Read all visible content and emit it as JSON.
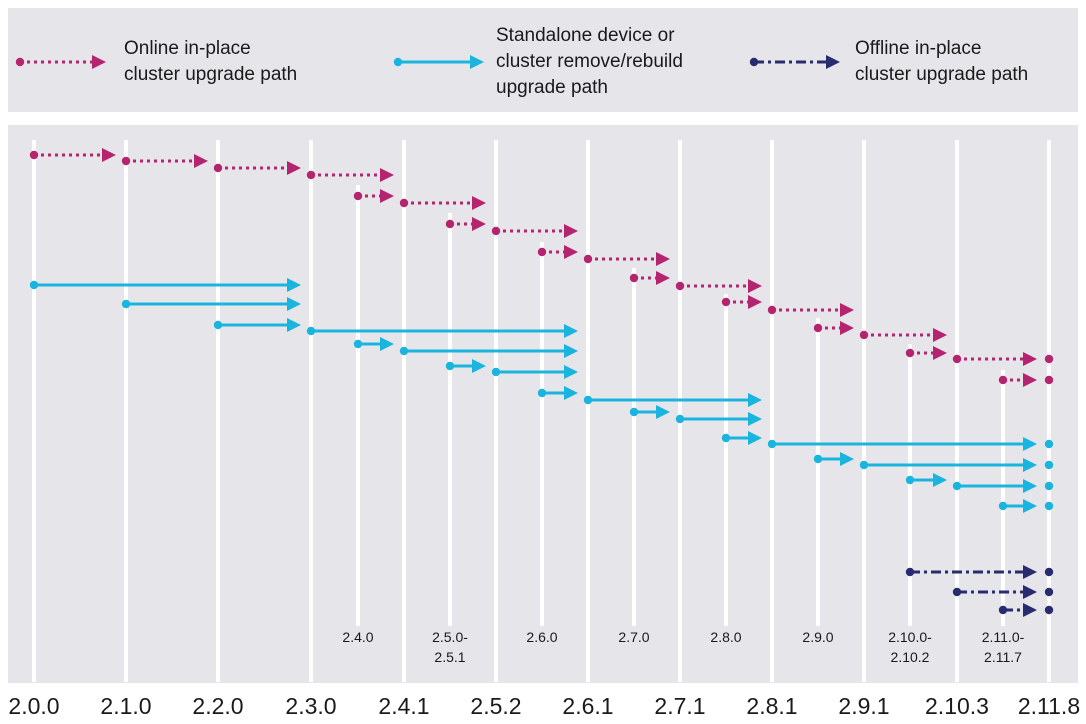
{
  "colors": {
    "background_panel": "#e6e5ea",
    "grid_line": "#ffffff",
    "online": "#b5246f",
    "standalone": "#19b5de",
    "offline": "#282c6e"
  },
  "legend": {
    "online": {
      "lines": [
        "Online in-place",
        "cluster upgrade path"
      ],
      "style": "dotted",
      "icon": "dotted-arrow-icon"
    },
    "standalone": {
      "lines": [
        "Standalone device or",
        "cluster remove/rebuild",
        "upgrade path"
      ],
      "style": "solid",
      "icon": "solid-arrow-icon"
    },
    "offline": {
      "lines": [
        "Offline in-place",
        "cluster upgrade path"
      ],
      "style": "dashdot",
      "icon": "dashdot-arrow-icon"
    }
  },
  "major_versions": [
    "2.0.0",
    "2.1.0",
    "2.2.0",
    "2.3.0",
    "2.4.1",
    "2.5.2",
    "2.6.1",
    "2.7.1",
    "2.8.1",
    "2.9.1",
    "2.10.3",
    "2.11.8"
  ],
  "minor_versions": [
    {
      "lines": [
        "2.4.0"
      ],
      "after": "2.3.0"
    },
    {
      "lines": [
        "2.5.0-",
        "2.5.1"
      ],
      "after": "2.4.1"
    },
    {
      "lines": [
        "2.6.0"
      ],
      "after": "2.5.2"
    },
    {
      "lines": [
        "2.7.0"
      ],
      "after": "2.6.1"
    },
    {
      "lines": [
        "2.8.0"
      ],
      "after": "2.7.1"
    },
    {
      "lines": [
        "2.9.0"
      ],
      "after": "2.8.1"
    },
    {
      "lines": [
        "2.10.0-",
        "2.10.2"
      ],
      "after": "2.9.1"
    },
    {
      "lines": [
        "2.11.0-",
        "2.11.7"
      ],
      "after": "2.10.3"
    }
  ],
  "paths": {
    "online": [
      {
        "from": "2.0.0",
        "to": "2.1.0"
      },
      {
        "from": "2.1.0",
        "to": "2.2.0"
      },
      {
        "from": "2.2.0",
        "to": "2.3.0"
      },
      {
        "from": "2.3.0",
        "to": "2.4.1"
      },
      {
        "from": "2.4.0",
        "to": "2.4.1"
      },
      {
        "from": "2.4.1",
        "to": "2.5.2"
      },
      {
        "from": "2.5.0-2.5.1",
        "to": "2.5.2"
      },
      {
        "from": "2.5.2",
        "to": "2.6.1"
      },
      {
        "from": "2.6.0",
        "to": "2.6.1"
      },
      {
        "from": "2.6.1",
        "to": "2.7.1"
      },
      {
        "from": "2.7.0",
        "to": "2.7.1"
      },
      {
        "from": "2.7.1",
        "to": "2.8.1"
      },
      {
        "from": "2.8.0",
        "to": "2.8.1"
      },
      {
        "from": "2.8.1",
        "to": "2.9.1"
      },
      {
        "from": "2.9.0",
        "to": "2.9.1"
      },
      {
        "from": "2.9.1",
        "to": "2.10.3"
      },
      {
        "from": "2.10.0-2.10.2",
        "to": "2.10.3"
      },
      {
        "from": "2.10.3",
        "to": "2.11.8"
      },
      {
        "from": "2.11.0-2.11.7",
        "to": "2.11.8"
      }
    ],
    "standalone": [
      {
        "from": "2.0.0",
        "to": "2.3.0"
      },
      {
        "from": "2.1.0",
        "to": "2.3.0"
      },
      {
        "from": "2.2.0",
        "to": "2.3.0"
      },
      {
        "from": "2.3.0",
        "to": "2.6.1"
      },
      {
        "from": "2.4.0",
        "to": "2.4.1"
      },
      {
        "from": "2.4.1",
        "to": "2.6.1"
      },
      {
        "from": "2.5.0-2.5.1",
        "to": "2.5.2"
      },
      {
        "from": "2.5.2",
        "to": "2.6.1"
      },
      {
        "from": "2.6.0",
        "to": "2.6.1"
      },
      {
        "from": "2.6.1",
        "to": "2.8.1"
      },
      {
        "from": "2.7.0",
        "to": "2.7.1"
      },
      {
        "from": "2.7.1",
        "to": "2.8.1"
      },
      {
        "from": "2.8.0",
        "to": "2.8.1"
      },
      {
        "from": "2.8.1",
        "to": "2.11.8"
      },
      {
        "from": "2.9.0",
        "to": "2.9.1"
      },
      {
        "from": "2.9.1",
        "to": "2.11.8"
      },
      {
        "from": "2.10.0-2.10.2",
        "to": "2.10.3"
      },
      {
        "from": "2.10.3",
        "to": "2.11.8"
      },
      {
        "from": "2.11.0-2.11.7",
        "to": "2.11.8"
      }
    ],
    "offline": [
      {
        "from": "2.10.0-2.10.2",
        "to": "2.11.8"
      },
      {
        "from": "2.10.3",
        "to": "2.11.8"
      },
      {
        "from": "2.11.0-2.11.7",
        "to": "2.11.8"
      }
    ]
  }
}
